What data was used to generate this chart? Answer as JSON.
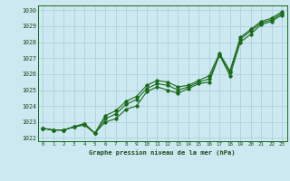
{
  "title": "Graphe pression niveau de la mer (hPa)",
  "bg_color": "#cce8f0",
  "grid_color": "#aaccdd",
  "line_color": "#1a6b1a",
  "text_color": "#1a4a1a",
  "x_ticks": [
    0,
    1,
    2,
    3,
    4,
    5,
    6,
    7,
    8,
    9,
    10,
    11,
    12,
    13,
    14,
    15,
    16,
    17,
    18,
    19,
    20,
    21,
    22,
    23
  ],
  "ylim": [
    1021.8,
    1030.3
  ],
  "yticks": [
    1022,
    1023,
    1024,
    1025,
    1026,
    1027,
    1028,
    1029,
    1030
  ],
  "series1": [
    1022.6,
    1022.5,
    1022.5,
    1022.7,
    1022.8,
    1022.3,
    1023.0,
    1023.2,
    1023.8,
    1024.0,
    1024.9,
    1025.2,
    1025.0,
    1024.8,
    1025.1,
    1025.4,
    1025.5,
    1027.2,
    1025.9,
    1028.0,
    1028.5,
    1029.1,
    1029.3,
    1029.7
  ],
  "series2": [
    1022.6,
    1022.5,
    1022.5,
    1022.7,
    1022.9,
    1022.3,
    1023.2,
    1023.5,
    1024.1,
    1024.4,
    1025.1,
    1025.4,
    1025.3,
    1025.0,
    1025.2,
    1025.5,
    1025.7,
    1027.2,
    1026.1,
    1028.2,
    1028.7,
    1029.2,
    1029.4,
    1029.8
  ],
  "series3": [
    1022.6,
    1022.5,
    1022.5,
    1022.7,
    1022.9,
    1022.3,
    1023.4,
    1023.7,
    1024.3,
    1024.6,
    1025.3,
    1025.6,
    1025.5,
    1025.2,
    1025.3,
    1025.6,
    1025.9,
    1027.3,
    1026.2,
    1028.3,
    1028.8,
    1029.3,
    1029.5,
    1029.9
  ]
}
